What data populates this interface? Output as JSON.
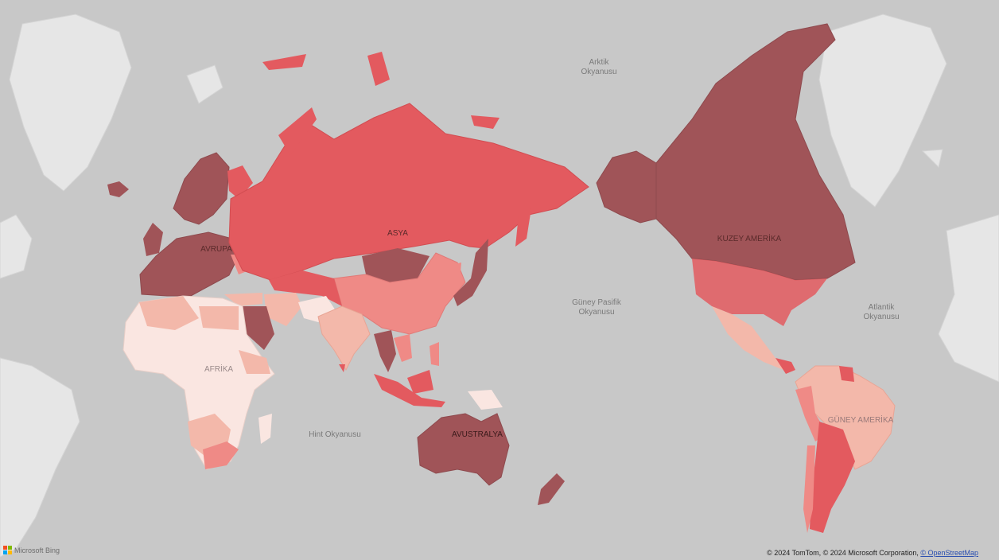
{
  "map": {
    "ocean_labels": {
      "arctic": [
        "Arktik",
        "Okyanusu"
      ],
      "south_pacific": [
        "Güney Pasifik",
        "Okyanusu"
      ],
      "atlantic": [
        "Atlantik",
        "Okyanusu"
      ],
      "indian": "Hint Okyanusu"
    },
    "continent_labels": {
      "asia": "ASYA",
      "europe": "AVRUPA",
      "africa": "AFRİKA",
      "north_america": "KUZEY AMERİKA",
      "south_america": "GÜNEY AMERİKA",
      "australia": "AVUSTRALYA"
    },
    "logo_text": "Microsoft Bing",
    "attribution": {
      "text": "© 2024 TomTom, © 2024 Microsoft Corporation, ",
      "link": "© OpenStreetMap"
    },
    "colors": {
      "ocean": "#c8c8c8",
      "unshaded_land": "#e6e6e6",
      "darkest": "#a05458",
      "strong": "#e35a5f",
      "medium": "#ef8a86",
      "light": "#f3b8aa",
      "lightest": "#fae6e1"
    }
  }
}
